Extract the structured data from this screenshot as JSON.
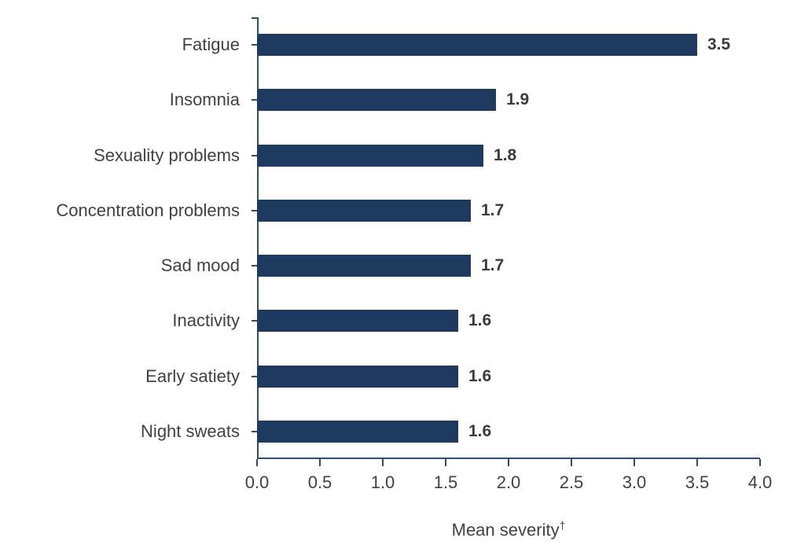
{
  "chart_data": {
    "type": "bar",
    "orientation": "horizontal",
    "title": "",
    "categories": [
      "Fatigue",
      "Insomnia",
      "Sexuality problems",
      "Concentration problems",
      "Sad mood",
      "Inactivity",
      "Early satiety",
      "Night sweats"
    ],
    "values": [
      3.5,
      1.9,
      1.8,
      1.7,
      1.7,
      1.6,
      1.6,
      1.6
    ],
    "value_labels": [
      "3.5",
      "1.9",
      "1.8",
      "1.7",
      "1.7",
      "1.6",
      "1.6",
      "1.6"
    ],
    "xlabel": "Mean severity",
    "xlabel_superscript": "†",
    "ylabel": "",
    "x_ticks": [
      "0.0",
      "0.5",
      "1.0",
      "1.5",
      "2.0",
      "2.5",
      "3.0",
      "3.5",
      "4.0"
    ],
    "x_tick_values": [
      0,
      0.5,
      1,
      1.5,
      2,
      2.5,
      3,
      3.5,
      4
    ],
    "xlim": [
      0,
      4
    ],
    "grid": false,
    "legend": false,
    "colors": {
      "bar": "#1e3a5e",
      "axis": "#2e4d73",
      "text": "#414141"
    }
  }
}
